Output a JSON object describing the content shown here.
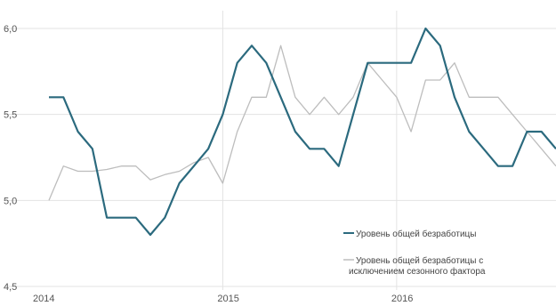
{
  "chart_data": {
    "type": "line",
    "title": "",
    "xlabel": "",
    "ylabel": "",
    "ylim": [
      4.5,
      6.0
    ],
    "y_ticks": [
      "4,5",
      "5,0",
      "5,5",
      "6,0"
    ],
    "y_tick_values": [
      4.5,
      5.0,
      5.5,
      6.0
    ],
    "x_ticks": [
      "2014",
      "2015",
      "2016"
    ],
    "x_tick_values": [
      0,
      12,
      24
    ],
    "grid": true,
    "legend_position": "bottom-right",
    "series": [
      {
        "name": "Уровень общей безработицы",
        "color": "#2b6a7e",
        "values": [
          5.6,
          5.6,
          5.4,
          5.3,
          4.9,
          4.9,
          4.9,
          4.8,
          4.9,
          5.1,
          5.2,
          5.3,
          5.5,
          5.8,
          5.9,
          5.8,
          5.6,
          5.4,
          5.3,
          5.3,
          5.2,
          5.5,
          5.8,
          5.8,
          5.8,
          5.8,
          6.0,
          5.9,
          5.6,
          5.4,
          5.3,
          5.2,
          5.2,
          5.4,
          5.4,
          5.3
        ]
      },
      {
        "name": "Уровень общей безработицы с исключением сезонного фактора",
        "legend_lines": [
          "Уровень общей безработицы с",
          "исключением сезонного фактора"
        ],
        "color": "#bdbdbd",
        "values": [
          5.0,
          5.2,
          5.17,
          5.17,
          5.18,
          5.2,
          5.2,
          5.12,
          5.15,
          5.17,
          5.22,
          5.25,
          5.1,
          5.4,
          5.6,
          5.6,
          5.9,
          5.6,
          5.5,
          5.6,
          5.5,
          5.6,
          5.8,
          5.7,
          5.6,
          5.4,
          5.7,
          5.7,
          5.8,
          5.6,
          5.6,
          5.6,
          5.5,
          5.4,
          5.3,
          5.2
        ]
      }
    ]
  }
}
